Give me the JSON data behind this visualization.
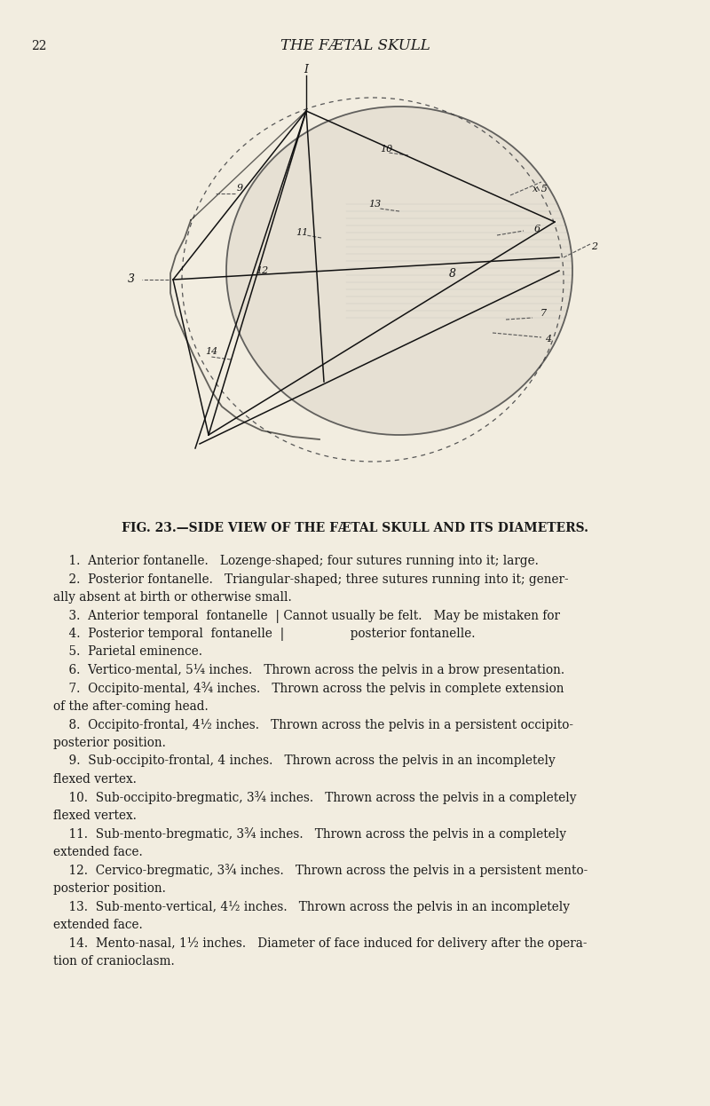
{
  "background_color": "#F2EDE0",
  "page_number": "22",
  "header_title": "THE FÆTAL SKULL",
  "fig_caption": "FIG. 23.—SIDE VIEW OF THE FÆTAL SKULL AND ITS DIAMETERS.",
  "body_lines": [
    "    1.  Anterior fontanelle.   Lozenge-shaped; four sutures running into it; large.",
    "    2.  Posterior fontanelle.   Triangular-shaped; three sutures running into it; gener-",
    "ally absent at birth or otherwise small.",
    "    3.  Anterior temporal  fontanelle  | Cannot usually be felt.   May be mistaken for",
    "    4.  Posterior temporal  fontanelle  |                 posterior fontanelle.",
    "    5.  Parietal eminence.",
    "    6.  Vertico-mental, 5¼ inches.   Thrown across the pelvis in a brow presentation.",
    "    7.  Occipito-mental, 4¾ inches.   Thrown across the pelvis in complete extension",
    "of the after-coming head.",
    "    8.  Occipito-frontal, 4½ inches.   Thrown across the pelvis in a persistent occipito-",
    "posterior position.",
    "    9.  Sub-occipito-frontal, 4 inches.   Thrown across the pelvis in an incompletely",
    "flexed vertex.",
    "    10.  Sub-occipito-bregmatic, 3¾ inches.   Thrown across the pelvis in a completely",
    "flexed vertex.",
    "    11.  Sub-mento-bregmatic, 3¾ inches.   Thrown across the pelvis in a completely",
    "extended face.",
    "    12.  Cervico-bregmatic, 3¾ inches.   Thrown across the pelvis in a persistent mento-",
    "posterior position.",
    "    13.  Sub-mento-vertical, 4½ inches.   Thrown across the pelvis in an incompletely",
    "extended face.",
    "    14.  Mento-nasal, 1½ inches.   Diameter of face induced for delivery after the opera-",
    "tion of cranioclasm."
  ],
  "text_color": "#1a1a1a",
  "line_color": "#111111",
  "dashed_color": "#555555"
}
